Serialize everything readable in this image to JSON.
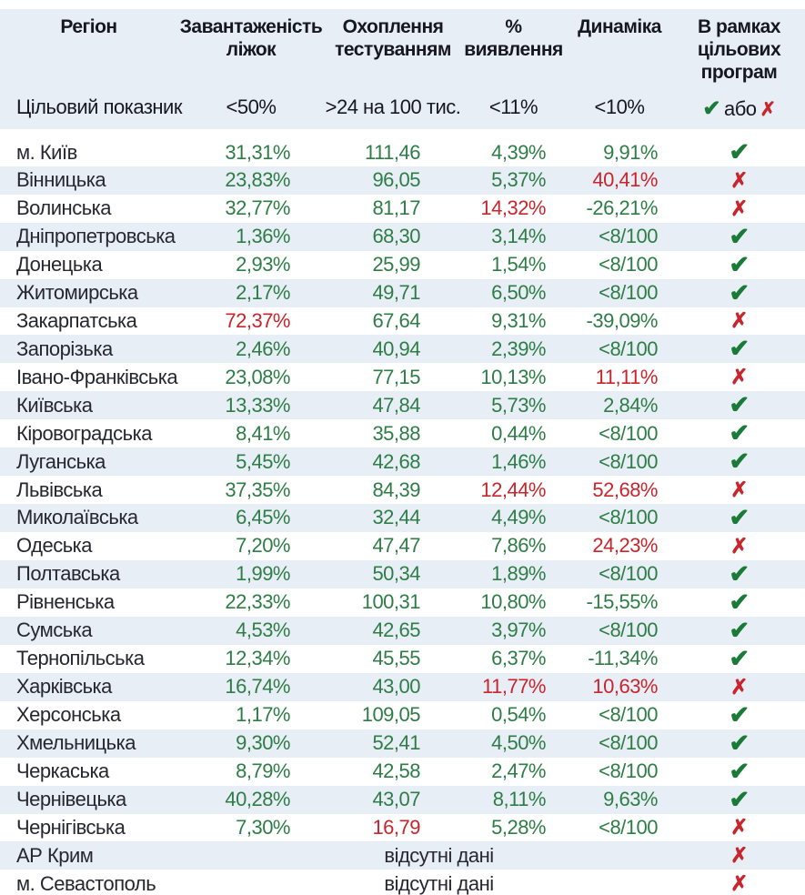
{
  "colors": {
    "band": "#e8eef6",
    "dark": "#16171f",
    "region_text": "#26272f",
    "green": "#2e7d46",
    "check_green": "#1a7a38",
    "red": "#c8252c"
  },
  "icons": {
    "check_icon": "✔",
    "cross_icon": "✗"
  },
  "table": {
    "columns": [
      {
        "id": "region",
        "lines": [
          "Регіон"
        ]
      },
      {
        "id": "bed",
        "lines": [
          "Завантаженість",
          "ліжок"
        ]
      },
      {
        "id": "testing",
        "lines": [
          "Охоплення",
          "тестуванням"
        ]
      },
      {
        "id": "detection",
        "lines": [
          "%",
          "виявлення"
        ]
      },
      {
        "id": "dynamics",
        "lines": [
          "Динаміка"
        ]
      },
      {
        "id": "program",
        "lines": [
          "В рамках",
          "цільових",
          "програм"
        ]
      }
    ],
    "target": {
      "label": "Цільовий показник",
      "bed": "<50%",
      "testing": ">24 на 100 тис.",
      "detection": "<11%",
      "dynamics": "<10%",
      "or_word": "або"
    },
    "no_data_text": "відсутні дані",
    "rows": [
      {
        "region": "м. Київ",
        "bed": "31,31%",
        "bed_status": "ok",
        "testing": "111,46",
        "testing_status": "ok",
        "detection": "4,39%",
        "detection_status": "ok",
        "dynamics": "9,91%",
        "dynamics_status": "ok",
        "result": "pass"
      },
      {
        "region": "Вінницька",
        "bed": "23,83%",
        "bed_status": "ok",
        "testing": "96,05",
        "testing_status": "ok",
        "detection": "5,37%",
        "detection_status": "ok",
        "dynamics": "40,41%",
        "dynamics_status": "bad",
        "result": "fail"
      },
      {
        "region": "Волинська",
        "bed": "32,77%",
        "bed_status": "ok",
        "testing": "81,17",
        "testing_status": "ok",
        "detection": "14,32%",
        "detection_status": "bad",
        "dynamics": "-26,21%",
        "dynamics_status": "ok",
        "result": "fail"
      },
      {
        "region": "Дніпропетровська",
        "bed": "1,36%",
        "bed_status": "ok",
        "testing": "68,30",
        "testing_status": "ok",
        "detection": "3,14%",
        "detection_status": "ok",
        "dynamics": "<8/100",
        "dynamics_status": "ok",
        "result": "pass"
      },
      {
        "region": "Донецька",
        "bed": "2,93%",
        "bed_status": "ok",
        "testing": "25,99",
        "testing_status": "ok",
        "detection": "1,54%",
        "detection_status": "ok",
        "dynamics": "<8/100",
        "dynamics_status": "ok",
        "result": "pass"
      },
      {
        "region": "Житомирська",
        "bed": "2,17%",
        "bed_status": "ok",
        "testing": "49,71",
        "testing_status": "ok",
        "detection": "6,50%",
        "detection_status": "ok",
        "dynamics": "<8/100",
        "dynamics_status": "ok",
        "result": "pass"
      },
      {
        "region": "Закарпатська",
        "bed": "72,37%",
        "bed_status": "bad",
        "testing": "67,64",
        "testing_status": "ok",
        "detection": "9,31%",
        "detection_status": "ok",
        "dynamics": "-39,09%",
        "dynamics_status": "ok",
        "result": "fail"
      },
      {
        "region": "Запорізька",
        "bed": "2,46%",
        "bed_status": "ok",
        "testing": "40,94",
        "testing_status": "ok",
        "detection": "2,39%",
        "detection_status": "ok",
        "dynamics": "<8/100",
        "dynamics_status": "ok",
        "result": "pass"
      },
      {
        "region": "Івано-Франківська",
        "bed": "23,08%",
        "bed_status": "ok",
        "testing": "77,15",
        "testing_status": "ok",
        "detection": "10,13%",
        "detection_status": "ok",
        "dynamics": "11,11%",
        "dynamics_status": "bad",
        "result": "fail"
      },
      {
        "region": "Київська",
        "bed": "13,33%",
        "bed_status": "ok",
        "testing": "47,84",
        "testing_status": "ok",
        "detection": "5,73%",
        "detection_status": "ok",
        "dynamics": "2,84%",
        "dynamics_status": "ok",
        "result": "pass"
      },
      {
        "region": "Кіровоградська",
        "bed": "8,41%",
        "bed_status": "ok",
        "testing": "35,88",
        "testing_status": "ok",
        "detection": "0,44%",
        "detection_status": "ok",
        "dynamics": "<8/100",
        "dynamics_status": "ok",
        "result": "pass"
      },
      {
        "region": "Луганська",
        "bed": "5,45%",
        "bed_status": "ok",
        "testing": "42,68",
        "testing_status": "ok",
        "detection": "1,46%",
        "detection_status": "ok",
        "dynamics": "<8/100",
        "dynamics_status": "ok",
        "result": "pass"
      },
      {
        "region": "Львівська",
        "bed": "37,35%",
        "bed_status": "ok",
        "testing": "84,39",
        "testing_status": "ok",
        "detection": "12,44%",
        "detection_status": "bad",
        "dynamics": "52,68%",
        "dynamics_status": "bad",
        "result": "fail"
      },
      {
        "region": "Миколаївська",
        "bed": "6,45%",
        "bed_status": "ok",
        "testing": "32,44",
        "testing_status": "ok",
        "detection": "4,49%",
        "detection_status": "ok",
        "dynamics": "<8/100",
        "dynamics_status": "ok",
        "result": "pass"
      },
      {
        "region": "Одеська",
        "bed": "7,20%",
        "bed_status": "ok",
        "testing": "47,47",
        "testing_status": "ok",
        "detection": "7,86%",
        "detection_status": "ok",
        "dynamics": "24,23%",
        "dynamics_status": "bad",
        "result": "fail"
      },
      {
        "region": "Полтавська",
        "bed": "1,99%",
        "bed_status": "ok",
        "testing": "50,34",
        "testing_status": "ok",
        "detection": "1,89%",
        "detection_status": "ok",
        "dynamics": "<8/100",
        "dynamics_status": "ok",
        "result": "pass"
      },
      {
        "region": "Рівненська",
        "bed": "22,33%",
        "bed_status": "ok",
        "testing": "100,31",
        "testing_status": "ok",
        "detection": "10,80%",
        "detection_status": "ok",
        "dynamics": "-15,55%",
        "dynamics_status": "ok",
        "result": "pass"
      },
      {
        "region": "Сумська",
        "bed": "4,53%",
        "bed_status": "ok",
        "testing": "42,65",
        "testing_status": "ok",
        "detection": "3,97%",
        "detection_status": "ok",
        "dynamics": "<8/100",
        "dynamics_status": "ok",
        "result": "pass"
      },
      {
        "region": "Тернопільська",
        "bed": "12,34%",
        "bed_status": "ok",
        "testing": "45,55",
        "testing_status": "ok",
        "detection": "6,37%",
        "detection_status": "ok",
        "dynamics": "-11,34%",
        "dynamics_status": "ok",
        "result": "pass"
      },
      {
        "region": "Харківська",
        "bed": "16,74%",
        "bed_status": "ok",
        "testing": "43,00",
        "testing_status": "ok",
        "detection": "11,77%",
        "detection_status": "bad",
        "dynamics": "10,63%",
        "dynamics_status": "bad",
        "result": "fail"
      },
      {
        "region": "Херсонська",
        "bed": "1,17%",
        "bed_status": "ok",
        "testing": "109,05",
        "testing_status": "ok",
        "detection": "0,54%",
        "detection_status": "ok",
        "dynamics": "<8/100",
        "dynamics_status": "ok",
        "result": "pass"
      },
      {
        "region": "Хмельницька",
        "bed": "9,30%",
        "bed_status": "ok",
        "testing": "52,41",
        "testing_status": "ok",
        "detection": "4,50%",
        "detection_status": "ok",
        "dynamics": "<8/100",
        "dynamics_status": "ok",
        "result": "pass"
      },
      {
        "region": "Черкаська",
        "bed": "8,79%",
        "bed_status": "ok",
        "testing": "42,58",
        "testing_status": "ok",
        "detection": "2,47%",
        "detection_status": "ok",
        "dynamics": "<8/100",
        "dynamics_status": "ok",
        "result": "pass"
      },
      {
        "region": "Чернівецька",
        "bed": "40,28%",
        "bed_status": "ok",
        "testing": "43,07",
        "testing_status": "ok",
        "detection": "8,11%",
        "detection_status": "ok",
        "dynamics": "9,63%",
        "dynamics_status": "ok",
        "result": "pass"
      },
      {
        "region": "Чернігівська",
        "bed": "7,30%",
        "bed_status": "ok",
        "testing": "16,79",
        "testing_status": "bad",
        "detection": "5,28%",
        "detection_status": "ok",
        "dynamics": "<8/100",
        "dynamics_status": "ok",
        "result": "fail"
      },
      {
        "region": "АР Крим",
        "no_data": true,
        "result": "fail"
      },
      {
        "region": "м. Севастополь",
        "no_data": true,
        "result": "fail"
      }
    ]
  }
}
